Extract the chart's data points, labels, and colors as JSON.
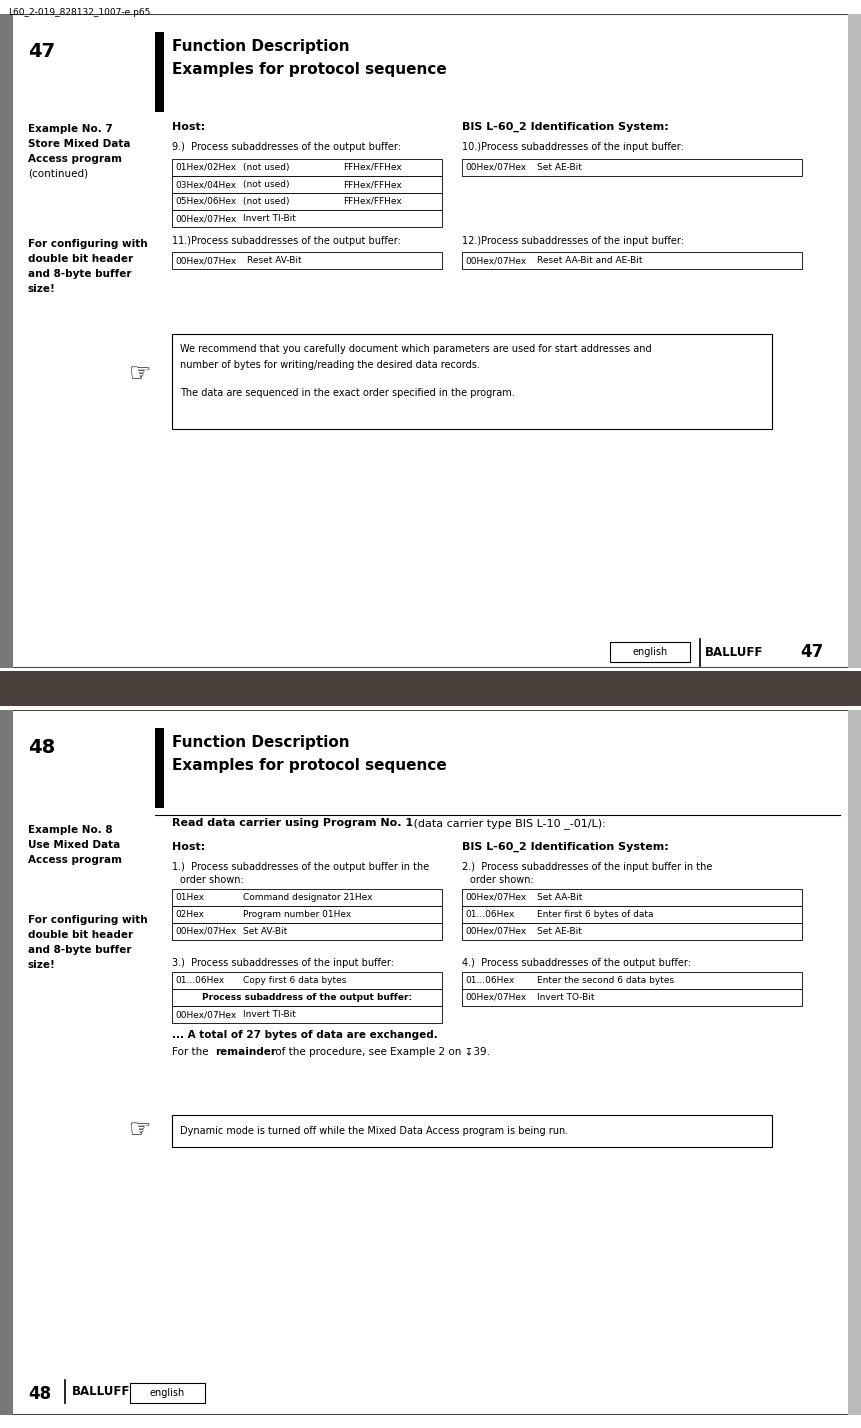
{
  "bg_color": "#ffffff",
  "separator_color": "#4a3f3a",
  "page_border_color": "#333333",
  "left_strip_color": "#777777",
  "page1": {
    "page_number": "47",
    "title_line1": "Function Description",
    "title_line2": "Examples for protocol sequence",
    "file_path": "L60_2-019_828132_1007-e.p65",
    "host_label": "Host:",
    "bis_label": "BIS L-60_2 Identification System:",
    "left_col_lines": [
      "Example No. 7",
      "Store Mixed Data",
      "Access program",
      "(continued)"
    ],
    "left_col_bold": [
      true,
      true,
      true,
      false
    ],
    "left_col2_lines": [
      "For configuring with",
      "double bit header",
      "and 8-byte buffer",
      "size!"
    ],
    "section9": "9.)  Process subaddresses of the output buffer:",
    "section10": "10.)Process subaddresses of the input buffer:",
    "table9": [
      [
        "01Hex/02Hex",
        "(not used)",
        "FFHex/FFHex"
      ],
      [
        "03Hex/04Hex",
        "(not used)",
        "FFHex/FFHex"
      ],
      [
        "05Hex/06Hex",
        "(not used)",
        "FFHex/FFHex"
      ],
      [
        "00Hex/07Hex",
        "Invert TI-Bit",
        ""
      ]
    ],
    "table10": [
      [
        "00Hex/07Hex",
        "Set AE-Bit"
      ]
    ],
    "section11": "11.)Process subaddresses of the output buffer:",
    "section12": "12.)Process subaddresses of the input buffer:",
    "table11": [
      [
        "00Hex/07Hex",
        "Reset AV-Bit"
      ]
    ],
    "table12": [
      [
        "00Hex/07Hex",
        "Reset AA-Bit and AE-Bit"
      ]
    ],
    "note_line1": "We recommend that you carefully document which parameters are used for start addresses and",
    "note_line2": "number of bytes for writing/reading the desired data records.",
    "note_line3": "The data are sequenced in the exact order specified in the program.",
    "footer_english": "english",
    "footer_balluff": "BALLUFF",
    "footer_num": "47"
  },
  "page2": {
    "page_number": "48",
    "title_line1": "Function Description",
    "title_line2": "Examples for protocol sequence",
    "left_col_lines": [
      "Example No. 8",
      "Use Mixed Data",
      "Access program"
    ],
    "left_col2_lines": [
      "For configuring with",
      "double bit header",
      "and 8-byte buffer",
      "size!"
    ],
    "read_bold": "Read data carrier using Program No. 1",
    "read_normal": " (data carrier type BIS L-10 _-01/L):",
    "host_label": "Host:",
    "bis_label": "BIS L-60_2 Identification System:",
    "section1a": "1.)  Process subaddresses of the output buffer in the",
    "section1b": "      order shown:",
    "section2a": "2.)  Process subaddresses of the input buffer in the",
    "section2b": "      order shown:",
    "table1": [
      [
        "01Hex",
        "Command designator 21Hex"
      ],
      [
        "02Hex",
        "Program number 01Hex"
      ],
      [
        "00Hex/07Hex",
        "Set AV-Bit"
      ]
    ],
    "table2": [
      [
        "00Hex/07Hex",
        "Set AA-Bit"
      ],
      [
        "01...06Hex",
        "Enter first 6 bytes of data"
      ],
      [
        "00Hex/07Hex",
        "Set AE-Bit"
      ]
    ],
    "section3": "3.)  Process subaddresses of the input buffer:",
    "section4": "4.)  Process subaddresses of the output buffer:",
    "table3": [
      [
        "01...06Hex",
        "Copy first 6 data bytes"
      ],
      [
        "",
        "Process subaddress of the output buffer:"
      ],
      [
        "00Hex/07Hex",
        "Invert TI-Bit"
      ]
    ],
    "table4": [
      [
        "01...06Hex",
        "Enter the second 6 data bytes"
      ],
      [
        "00Hex/07Hex",
        "Invert TO-Bit"
      ]
    ],
    "total_line1": "... A total of 27 bytes of data are exchanged.",
    "total_line2a": "For the ",
    "total_line2b": "remainder",
    "total_line2c": " of the procedure, see Example 2 on ↧39.",
    "dynamic_note": "Dynamic mode is turned off while the Mixed Data Access program is being run.",
    "footer_num": "48",
    "footer_balluff": "BALLUFF",
    "footer_english": "english"
  }
}
